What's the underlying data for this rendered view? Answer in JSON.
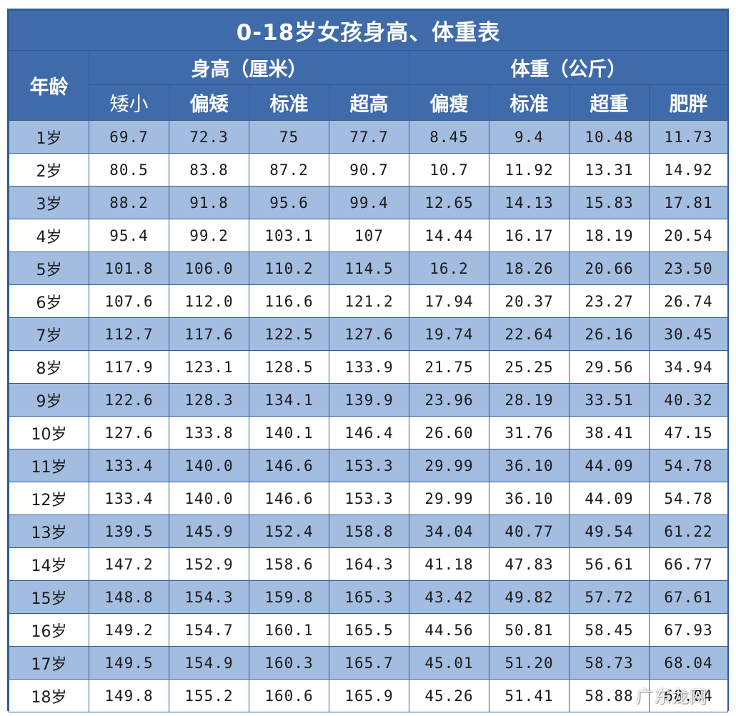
{
  "title": "0-18岁女孩身高、体重表",
  "age_header": "年龄",
  "group_height": "身高（厘米）",
  "group_weight": "体重（公斤）",
  "height_cols": [
    "矮小",
    "偏矮",
    "标准",
    "超高"
  ],
  "weight_cols": [
    "偏瘦",
    "标准",
    "超重",
    "肥胖"
  ],
  "rows": [
    {
      "age": "1岁",
      "cells": [
        "69.7",
        "72.3",
        "75",
        "77.7",
        "8.45",
        "9.4",
        "10.48",
        "11.73"
      ]
    },
    {
      "age": "2岁",
      "cells": [
        "80.5",
        "83.8",
        "87.2",
        "90.7",
        "10.7",
        "11.92",
        "13.31",
        "14.92"
      ]
    },
    {
      "age": "3岁",
      "cells": [
        "88.2",
        "91.8",
        "95.6",
        "99.4",
        "12.65",
        "14.13",
        "15.83",
        "17.81"
      ]
    },
    {
      "age": "4岁",
      "cells": [
        "95.4",
        "99.2",
        "103.1",
        "107",
        "14.44",
        "16.17",
        "18.19",
        "20.54"
      ]
    },
    {
      "age": "5岁",
      "cells": [
        "101.8",
        "106.0",
        "110.2",
        "114.5",
        "16.2",
        "18.26",
        "20.66",
        "23.50"
      ]
    },
    {
      "age": "6岁",
      "cells": [
        "107.6",
        "112.0",
        "116.6",
        "121.2",
        "17.94",
        "20.37",
        "23.27",
        "26.74"
      ]
    },
    {
      "age": "7岁",
      "cells": [
        "112.7",
        "117.6",
        "122.5",
        "127.6",
        "19.74",
        "22.64",
        "26.16",
        "30.45"
      ]
    },
    {
      "age": "8岁",
      "cells": [
        "117.9",
        "123.1",
        "128.5",
        "133.9",
        "21.75",
        "25.25",
        "29.56",
        "34.94"
      ]
    },
    {
      "age": "9岁",
      "cells": [
        "122.6",
        "128.3",
        "134.1",
        "139.9",
        "23.96",
        "28.19",
        "33.51",
        "40.32"
      ]
    },
    {
      "age": "10岁",
      "cells": [
        "127.6",
        "133.8",
        "140.1",
        "146.4",
        "26.60",
        "31.76",
        "38.41",
        "47.15"
      ]
    },
    {
      "age": "11岁",
      "cells": [
        "133.4",
        "140.0",
        "146.6",
        "153.3",
        "29.99",
        "36.10",
        "44.09",
        "54.78"
      ]
    },
    {
      "age": "12岁",
      "cells": [
        "133.4",
        "140.0",
        "146.6",
        "153.3",
        "29.99",
        "36.10",
        "44.09",
        "54.78"
      ]
    },
    {
      "age": "13岁",
      "cells": [
        "139.5",
        "145.9",
        "152.4",
        "158.8",
        "34.04",
        "40.77",
        "49.54",
        "61.22"
      ]
    },
    {
      "age": "14岁",
      "cells": [
        "147.2",
        "152.9",
        "158.6",
        "164.3",
        "41.18",
        "47.83",
        "56.61",
        "66.77"
      ]
    },
    {
      "age": "15岁",
      "cells": [
        "148.8",
        "154.3",
        "159.8",
        "165.3",
        "43.42",
        "49.82",
        "57.72",
        "67.61"
      ]
    },
    {
      "age": "16岁",
      "cells": [
        "149.2",
        "154.7",
        "160.1",
        "165.5",
        "44.56",
        "50.81",
        "58.45",
        "67.93"
      ]
    },
    {
      "age": "17岁",
      "cells": [
        "149.5",
        "154.9",
        "160.3",
        "165.7",
        "45.01",
        "51.20",
        "58.73",
        "68.04"
      ]
    },
    {
      "age": "18岁",
      "cells": [
        "149.8",
        "155.2",
        "160.6",
        "165.9",
        "45.26",
        "51.41",
        "58.88",
        "68.04"
      ]
    }
  ],
  "watermark": "广东龙网",
  "colors": {
    "header_blue": "#3f6bab",
    "band_blue": "#a3bde0",
    "border_blue": "#2f5d93"
  }
}
